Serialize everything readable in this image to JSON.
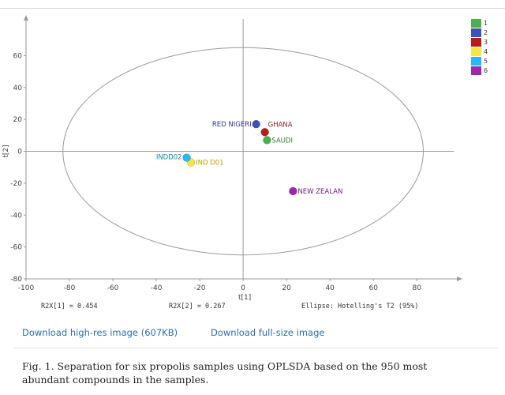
{
  "chart_data": {
    "type": "scatter",
    "title": "",
    "xlabel": "t[1]",
    "ylabel": "t[2]",
    "xlim": [
      -100,
      97
    ],
    "ylim": [
      -80,
      80
    ],
    "x_ticks": [
      -100,
      -80,
      -60,
      -40,
      -20,
      0,
      20,
      40,
      60,
      80
    ],
    "y_ticks": [
      -80,
      -60,
      -40,
      -20,
      0,
      20,
      40,
      60
    ],
    "grid": false,
    "legend_position": "top-right",
    "series": [
      {
        "name": "1",
        "label": "SAUDI",
        "x": 11,
        "y": 7,
        "color": "#4caf50"
      },
      {
        "name": "2",
        "label": "RED NIGERI",
        "x": 6,
        "y": 17,
        "color": "#3f51b5"
      },
      {
        "name": "3",
        "label": "GHANA",
        "x": 10,
        "y": 12,
        "color": "#b71c1c"
      },
      {
        "name": "4",
        "label": "IND D01",
        "x": -24,
        "y": -7,
        "color": "#f5e642"
      },
      {
        "name": "5",
        "label": "INDD02",
        "x": -26,
        "y": -4,
        "color": "#29b6f6"
      },
      {
        "name": "6",
        "label": "NEW ZEALAN",
        "x": 23,
        "y": -25,
        "color": "#9c27b0"
      }
    ],
    "ellipse": {
      "center": [
        0,
        0
      ],
      "rx": 83,
      "ry": 65,
      "label": "Ellipse: Hotelling's T2 (95%)"
    },
    "annotations": {
      "r2x1": "R2X[1] = 0.454",
      "r2x2": "R2X[2] = 0.267"
    }
  },
  "links": {
    "download_hires": "Download high-res image (607KB)",
    "download_full": "Download full-size image"
  },
  "caption": "Fig. 1. Separation for six propolis samples using OPLSDA based on the 950 most abundant compounds in the samples."
}
